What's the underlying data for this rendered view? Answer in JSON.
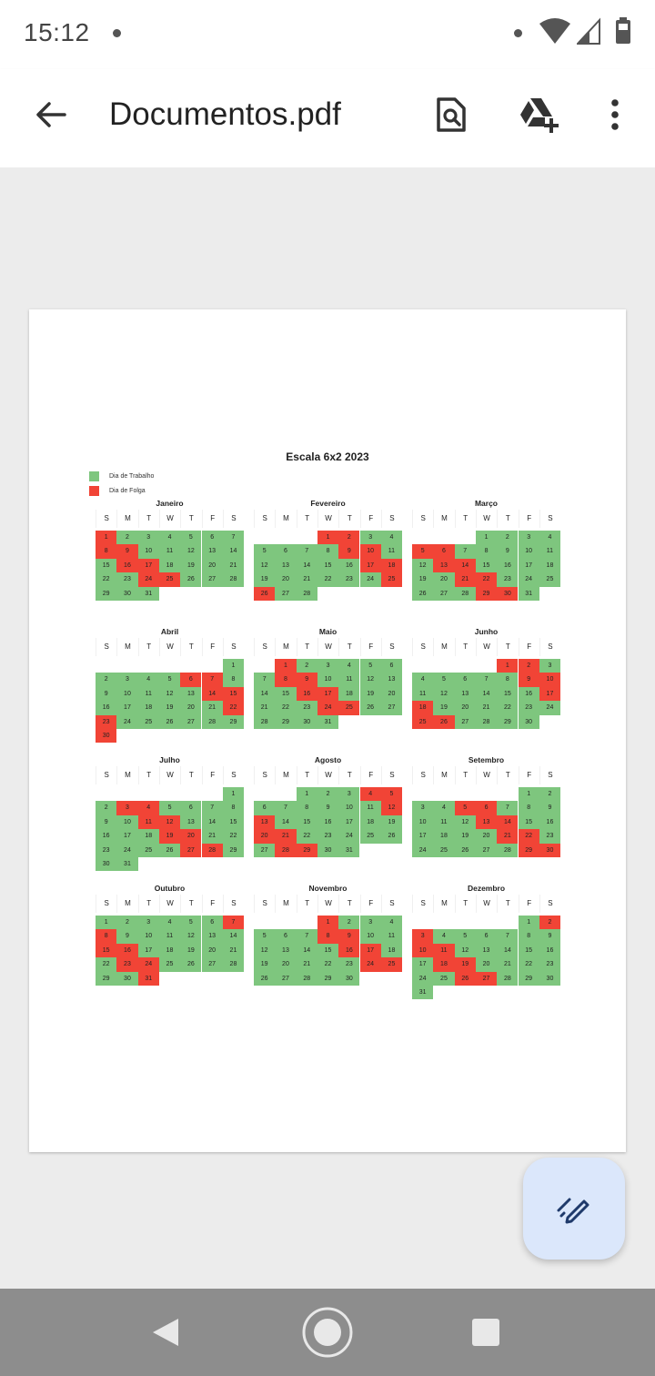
{
  "status_bar": {
    "time": "15:12"
  },
  "app_bar": {
    "title": "Documentos.pdf",
    "icons": [
      "arrow-back-icon",
      "find-in-page-icon",
      "drive-add-icon",
      "more-vert-icon"
    ]
  },
  "document": {
    "calendar_title": "Escala 6x2 2023",
    "legend": [
      {
        "label": "Dia de Trabalho",
        "color": "#7ec67e"
      },
      {
        "label": "Dia de Folga",
        "color": "#f14436"
      }
    ],
    "weekdays": [
      "S",
      "M",
      "T",
      "W",
      "T",
      "F",
      "S"
    ],
    "months": [
      {
        "name": "Janeiro",
        "start_weekday": 0,
        "days": 31,
        "off": [
          1,
          8,
          9,
          16,
          17,
          24,
          25
        ]
      },
      {
        "name": "Fevereiro",
        "start_weekday": 3,
        "days": 28,
        "off": [
          1,
          2,
          9,
          10,
          17,
          18,
          25,
          26
        ]
      },
      {
        "name": "Março",
        "start_weekday": 3,
        "days": 31,
        "off": [
          5,
          6,
          13,
          14,
          21,
          22,
          29,
          30
        ]
      },
      {
        "name": "Abril",
        "start_weekday": 6,
        "days": 30,
        "off": [
          6,
          7,
          14,
          15,
          22,
          23,
          30
        ]
      },
      {
        "name": "Maio",
        "start_weekday": 1,
        "days": 31,
        "off": [
          1,
          8,
          9,
          16,
          17,
          24,
          25
        ]
      },
      {
        "name": "Junho",
        "start_weekday": 4,
        "days": 30,
        "off": [
          1,
          2,
          9,
          10,
          17,
          18,
          25,
          26
        ]
      },
      {
        "name": "Julho",
        "start_weekday": 6,
        "days": 31,
        "off": [
          3,
          4,
          11,
          12,
          19,
          20,
          27,
          28
        ]
      },
      {
        "name": "Agosto",
        "start_weekday": 2,
        "days": 31,
        "off": [
          4,
          5,
          12,
          13,
          20,
          21,
          28,
          29
        ]
      },
      {
        "name": "Setembro",
        "start_weekday": 5,
        "days": 30,
        "off": [
          5,
          6,
          13,
          14,
          21,
          22,
          29,
          30
        ]
      },
      {
        "name": "Outubro",
        "start_weekday": 0,
        "days": 31,
        "off": [
          7,
          8,
          15,
          16,
          23,
          24,
          31
        ]
      },
      {
        "name": "Novembro",
        "start_weekday": 3,
        "days": 30,
        "off": [
          1,
          8,
          9,
          16,
          17,
          24,
          25
        ]
      },
      {
        "name": "Dezembro",
        "start_weekday": 5,
        "days": 31,
        "off": [
          2,
          3,
          10,
          11,
          18,
          19,
          26,
          27
        ]
      }
    ]
  },
  "fab": {
    "icon": "edit-annotate-icon"
  },
  "nav_bar": {
    "icons": [
      "nav-back-icon",
      "nav-home-icon",
      "nav-recents-icon"
    ]
  }
}
